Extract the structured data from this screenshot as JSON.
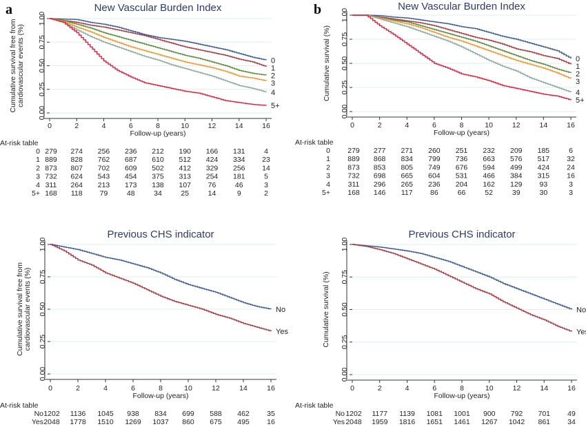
{
  "panel_letters": [
    "a",
    "b"
  ],
  "chart_data": [
    {
      "type": "line",
      "title": "New Vascular Burden Index",
      "ylabel": [
        "Cumulative survival free from",
        "cardiovascular events (%)"
      ],
      "xlabel": "Follow-up (years)",
      "xlim": [
        0,
        16
      ],
      "ylim": [
        0,
        1
      ],
      "xticks": [
        "0",
        "2",
        "4",
        "6",
        "8",
        "10",
        "12",
        "14",
        "16"
      ],
      "yticks": [
        "0.00",
        "0.25",
        "0.50",
        "0.75",
        "1.00"
      ],
      "grid": true,
      "x": [
        0,
        1,
        2,
        3,
        4,
        5,
        6,
        7,
        8,
        9,
        10,
        11,
        12,
        13,
        14,
        15,
        16
      ],
      "series": [
        {
          "name": "0",
          "color": "#3b5b94",
          "values": [
            1,
            0.995,
            0.99,
            0.96,
            0.94,
            0.91,
            0.87,
            0.83,
            0.8,
            0.78,
            0.76,
            0.73,
            0.7,
            0.67,
            0.63,
            0.59,
            0.56
          ]
        },
        {
          "name": "1",
          "color": "#a8383f",
          "values": [
            1,
            0.98,
            0.96,
            0.93,
            0.91,
            0.88,
            0.85,
            0.82,
            0.78,
            0.74,
            0.7,
            0.67,
            0.64,
            0.61,
            0.57,
            0.54,
            0.49
          ]
        },
        {
          "name": "2",
          "color": "#5b8a3c",
          "values": [
            1,
            0.98,
            0.94,
            0.9,
            0.85,
            0.81,
            0.77,
            0.73,
            0.69,
            0.65,
            0.61,
            0.58,
            0.54,
            0.5,
            0.45,
            0.42,
            0.4
          ]
        },
        {
          "name": "3",
          "color": "#f2962a",
          "values": [
            1,
            0.97,
            0.91,
            0.86,
            0.8,
            0.75,
            0.7,
            0.66,
            0.62,
            0.58,
            0.54,
            0.51,
            0.48,
            0.44,
            0.39,
            0.37,
            0.34
          ]
        },
        {
          "name": "4",
          "color": "#8aa89b",
          "values": [
            1,
            0.96,
            0.88,
            0.81,
            0.75,
            0.7,
            0.65,
            0.6,
            0.56,
            0.51,
            0.47,
            0.43,
            0.39,
            0.34,
            0.29,
            0.26,
            0.22
          ]
        },
        {
          "name": "5+",
          "color": "#e1203c",
          "values": [
            1,
            0.96,
            0.85,
            0.7,
            0.55,
            0.45,
            0.38,
            0.32,
            0.29,
            0.26,
            0.23,
            0.21,
            0.17,
            0.13,
            0.11,
            0.09,
            0.08
          ]
        }
      ],
      "at_risk": {
        "title": "At-risk table",
        "rows": [
          {
            "label": "0",
            "values": [
              "279",
              "274",
              "256",
              "236",
              "212",
              "190",
              "166",
              "131",
              "4"
            ]
          },
          {
            "label": "1",
            "values": [
              "889",
              "828",
              "762",
              "687",
              "610",
              "512",
              "424",
              "334",
              "23"
            ]
          },
          {
            "label": "2",
            "values": [
              "873",
              "807",
              "702",
              "609",
              "502",
              "412",
              "329",
              "256",
              "14"
            ]
          },
          {
            "label": "3",
            "values": [
              "732",
              "624",
              "543",
              "454",
              "375",
              "313",
              "254",
              "181",
              "5"
            ]
          },
          {
            "label": "4",
            "values": [
              "311",
              "264",
              "213",
              "173",
              "138",
              "107",
              "76",
              "46",
              "3"
            ]
          },
          {
            "label": "5+",
            "values": [
              "168",
              "118",
              "79",
              "48",
              "34",
              "25",
              "14",
              "9",
              "2"
            ]
          }
        ]
      }
    },
    {
      "type": "line",
      "title": "New Vascular Burden Index",
      "ylabel": [
        "Cumulative survival (%)"
      ],
      "xlabel": "Follow-up (years)",
      "xlim": [
        0,
        16
      ],
      "ylim": [
        0,
        1
      ],
      "xticks": [
        "0",
        "2",
        "4",
        "6",
        "8",
        "10",
        "12",
        "14",
        "16"
      ],
      "yticks": [
        "0.00",
        "0.25",
        "0.50",
        "0.75",
        "1.00"
      ],
      "grid": true,
      "x": [
        0,
        1,
        2,
        3,
        4,
        5,
        6,
        7,
        8,
        9,
        10,
        11,
        12,
        13,
        14,
        15,
        16
      ],
      "series": [
        {
          "name": "0",
          "color": "#3b5b94",
          "values": [
            1,
            1,
            0.995,
            0.98,
            0.97,
            0.95,
            0.93,
            0.91,
            0.88,
            0.86,
            0.82,
            0.78,
            0.75,
            0.71,
            0.67,
            0.63,
            0.55
          ]
        },
        {
          "name": "1",
          "color": "#a8383f",
          "values": [
            1,
            1,
            0.98,
            0.96,
            0.94,
            0.92,
            0.89,
            0.85,
            0.81,
            0.77,
            0.74,
            0.7,
            0.65,
            0.62,
            0.58,
            0.55,
            0.49
          ]
        },
        {
          "name": "2",
          "color": "#5b8a3c",
          "values": [
            1,
            1,
            0.97,
            0.95,
            0.93,
            0.89,
            0.85,
            0.81,
            0.77,
            0.73,
            0.68,
            0.63,
            0.58,
            0.53,
            0.49,
            0.44,
            0.4
          ]
        },
        {
          "name": "3",
          "color": "#f2962a",
          "values": [
            1,
            1,
            0.97,
            0.94,
            0.91,
            0.87,
            0.82,
            0.77,
            0.73,
            0.68,
            0.63,
            0.58,
            0.53,
            0.49,
            0.45,
            0.4,
            0.34
          ]
        },
        {
          "name": "4",
          "color": "#8aa89b",
          "values": [
            1,
            1,
            0.96,
            0.92,
            0.88,
            0.83,
            0.78,
            0.73,
            0.67,
            0.6,
            0.53,
            0.47,
            0.42,
            0.35,
            0.3,
            0.25,
            0.2
          ]
        },
        {
          "name": "5+",
          "color": "#e1203c",
          "values": [
            1,
            1,
            0.89,
            0.8,
            0.7,
            0.6,
            0.5,
            0.45,
            0.39,
            0.36,
            0.32,
            0.27,
            0.24,
            0.21,
            0.18,
            0.16,
            0.12
          ]
        }
      ],
      "at_risk": {
        "title": "At-risk table",
        "rows": [
          {
            "label": "0",
            "values": [
              "279",
              "277",
              "271",
              "260",
              "251",
              "232",
              "209",
              "185",
              "6"
            ]
          },
          {
            "label": "1",
            "values": [
              "889",
              "868",
              "834",
              "799",
              "736",
              "663",
              "576",
              "517",
              "32"
            ]
          },
          {
            "label": "2",
            "values": [
              "873",
              "853",
              "805",
              "749",
              "676",
              "594",
              "499",
              "424",
              "24"
            ]
          },
          {
            "label": "3",
            "values": [
              "732",
              "698",
              "665",
              "604",
              "531",
              "466",
              "384",
              "315",
              "16"
            ]
          },
          {
            "label": "4",
            "values": [
              "311",
              "296",
              "265",
              "236",
              "204",
              "162",
              "129",
              "93",
              "3"
            ]
          },
          {
            "label": "5+",
            "values": [
              "168",
              "146",
              "117",
              "86",
              "66",
              "52",
              "39",
              "30",
              "3"
            ]
          }
        ]
      }
    },
    {
      "type": "line",
      "title": "Previous CHS indicator",
      "ylabel": [
        "Cumulative survival free from",
        "cardiovascular events (%)"
      ],
      "xlabel": "Follow-up (years)",
      "xlim": [
        0,
        16
      ],
      "ylim": [
        0,
        1
      ],
      "xticks": [
        "0",
        "2",
        "4",
        "6",
        "8",
        "10",
        "12",
        "14",
        "16"
      ],
      "yticks": [
        "0.00",
        "0.25",
        "0.50",
        "0.75",
        "1.00"
      ],
      "grid": true,
      "x": [
        0,
        1,
        2,
        3,
        4,
        5,
        6,
        7,
        8,
        9,
        10,
        11,
        12,
        13,
        14,
        15,
        16
      ],
      "series": [
        {
          "name": "No",
          "color": "#3b5b94",
          "values": [
            1,
            0.98,
            0.96,
            0.93,
            0.9,
            0.88,
            0.85,
            0.82,
            0.78,
            0.73,
            0.69,
            0.66,
            0.63,
            0.59,
            0.55,
            0.52,
            0.5
          ]
        },
        {
          "name": "Yes",
          "color": "#a8383f",
          "values": [
            1,
            0.95,
            0.88,
            0.84,
            0.78,
            0.74,
            0.7,
            0.65,
            0.6,
            0.56,
            0.53,
            0.5,
            0.46,
            0.43,
            0.39,
            0.36,
            0.33
          ]
        }
      ],
      "at_risk": {
        "title": "At-risk table",
        "rows": [
          {
            "label": "No",
            "values": [
              "1202",
              "1136",
              "1045",
              "938",
              "834",
              "699",
              "588",
              "462",
              "35"
            ]
          },
          {
            "label": "Yes",
            "values": [
              "2048",
              "1778",
              "1510",
              "1269",
              "1037",
              "860",
              "675",
              "495",
              "16"
            ]
          }
        ]
      }
    },
    {
      "type": "line",
      "title": "Previous CHS indicator",
      "ylabel": [
        "Cumulative survival (%)"
      ],
      "xlabel": "Follow-up (years)",
      "xlim": [
        0,
        16
      ],
      "ylim": [
        0,
        1
      ],
      "xticks": [
        "0",
        "2",
        "4",
        "6",
        "8",
        "10",
        "12",
        "14",
        "16"
      ],
      "yticks": [
        "0.00",
        "0.25",
        "0.50",
        "0.75",
        "1.00"
      ],
      "grid": true,
      "x": [
        0,
        1,
        2,
        3,
        4,
        5,
        6,
        7,
        8,
        9,
        10,
        11,
        12,
        13,
        14,
        15,
        16
      ],
      "series": [
        {
          "name": "No",
          "color": "#3b5b94",
          "values": [
            1,
            0.99,
            0.98,
            0.965,
            0.95,
            0.93,
            0.9,
            0.87,
            0.83,
            0.79,
            0.75,
            0.7,
            0.66,
            0.62,
            0.58,
            0.54,
            0.5
          ]
        },
        {
          "name": "Yes",
          "color": "#a8383f",
          "values": [
            1,
            0.985,
            0.96,
            0.93,
            0.89,
            0.85,
            0.81,
            0.76,
            0.71,
            0.66,
            0.62,
            0.56,
            0.51,
            0.46,
            0.42,
            0.37,
            0.33
          ]
        }
      ],
      "at_risk": {
        "title": "At-risk table",
        "rows": [
          {
            "label": "No",
            "values": [
              "1202",
              "1177",
              "1139",
              "1081",
              "1001",
              "900",
              "792",
              "701",
              "49"
            ]
          },
          {
            "label": "Yes",
            "values": [
              "2048",
              "1959",
              "1816",
              "1651",
              "1461",
              "1267",
              "1042",
              "861",
              "34"
            ]
          }
        ]
      }
    }
  ]
}
